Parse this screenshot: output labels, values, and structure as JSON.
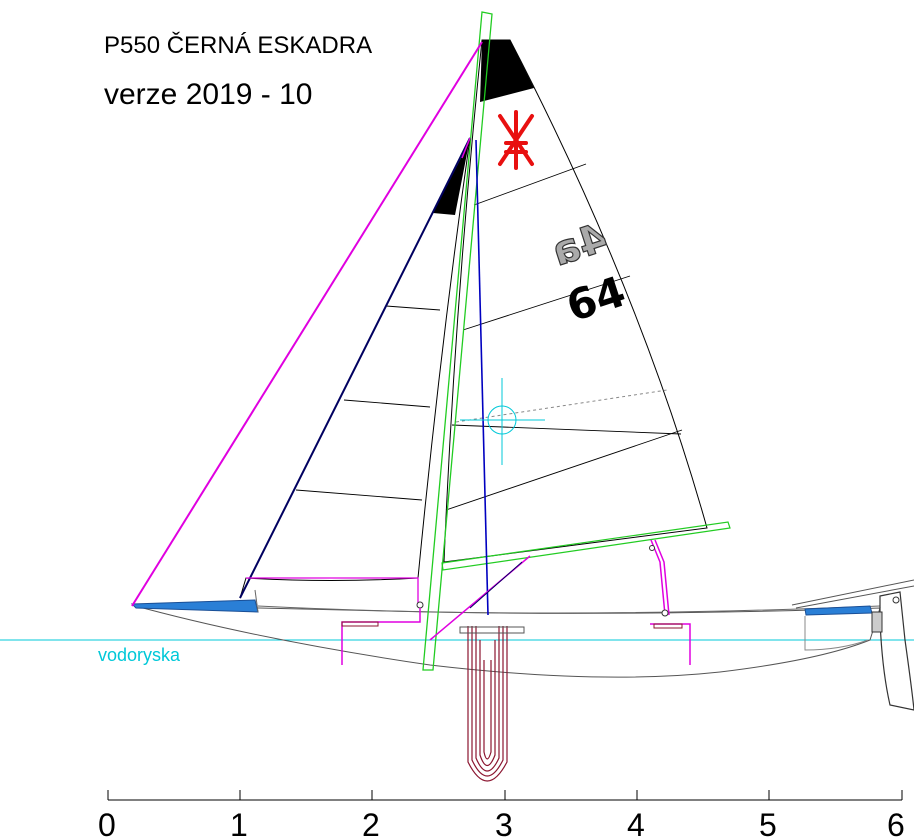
{
  "title": {
    "name": "P550 ČERNÁ ESKADRA",
    "version": "verze 2019 - 10"
  },
  "waterline": {
    "label": "vodoryska",
    "color": "#00c8d8"
  },
  "sail": {
    "class_mark": "4a",
    "number": "64",
    "emblem_color": "#e81010"
  },
  "ruler": {
    "ticks": [
      "0",
      "1",
      "2",
      "3",
      "4",
      "5",
      "6"
    ]
  },
  "colors": {
    "forestay": "#e000e0",
    "mast": "#22cc22",
    "jib_luff": "#000060",
    "backstay": "#0000c0",
    "deck_blue": "#2a7fd6",
    "centreboard": "#8b1530"
  }
}
